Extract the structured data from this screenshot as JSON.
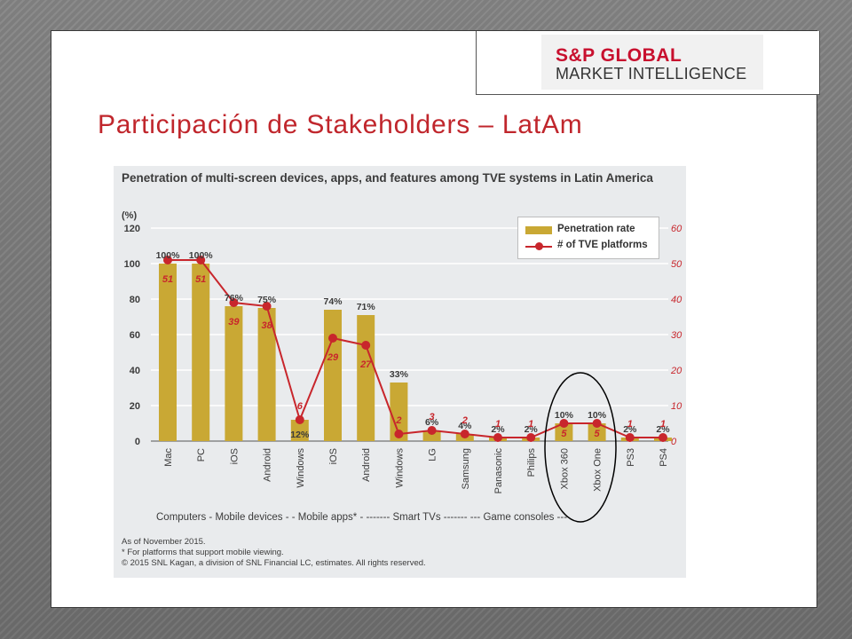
{
  "logo": {
    "line1": "S&P GLOBAL",
    "line2": "MARKET INTELLIGENCE"
  },
  "slide_title": "Participación de Stakeholders – LatAm",
  "footnotes": [
    "As of November 2015.",
    "* For platforms that support mobile viewing.",
    "© 2015 SNL Kagan, a division of SNL Financial LC, estimates. All rights reserved."
  ],
  "colors": {
    "bar": "#c9a834",
    "line": "#c8262c",
    "title": "#c0262c"
  },
  "chart_data": {
    "type": "bar",
    "title": "Penetration of multi-screen devices, apps, and features among TVE systems in Latin America",
    "ylabel": "(%)",
    "ylim": [
      0,
      120
    ],
    "y2lim": [
      0,
      60
    ],
    "yticks": [
      "0",
      "20",
      "40",
      "60",
      "80",
      "100",
      "120"
    ],
    "y2ticks": [
      "0",
      "10",
      "20",
      "30",
      "40",
      "50",
      "60"
    ],
    "categories": [
      "Mac",
      "PC",
      "iOS",
      "Android",
      "Windows",
      "iOS",
      "Android",
      "Windows",
      "LG",
      "Samsung",
      "Panasonic",
      "Philips",
      "Xbox 360",
      "Xbox One",
      "PS3",
      "PS4"
    ],
    "groups": "Computers  - Mobile devices -   - Mobile apps* -      ------- Smart TVs -------        --- Game consoles ---",
    "legend_position": "top-right",
    "series": [
      {
        "name": "Penetration rate",
        "kind": "bar",
        "values": [
          100,
          100,
          76,
          75,
          12,
          74,
          71,
          33,
          6,
          4,
          2,
          2,
          10,
          10,
          2,
          2
        ],
        "labels": [
          "100%",
          "100%",
          "76%",
          "75%",
          "12%",
          "74%",
          "71%",
          "33%",
          "6%",
          "4%",
          "2%",
          "2%",
          "10%",
          "10%",
          "2%",
          "2%"
        ]
      },
      {
        "name": "# of TVE platforms",
        "kind": "line",
        "axis": "right",
        "values": [
          51,
          51,
          39,
          38,
          6,
          29,
          27,
          2,
          3,
          2,
          1,
          1,
          5,
          5,
          1,
          1
        ],
        "labels": [
          "51",
          "51",
          "39",
          "38",
          "6",
          "29",
          "27",
          "2",
          "3",
          "2",
          "1",
          "1",
          "5",
          "5",
          "1",
          "1"
        ]
      }
    ]
  }
}
